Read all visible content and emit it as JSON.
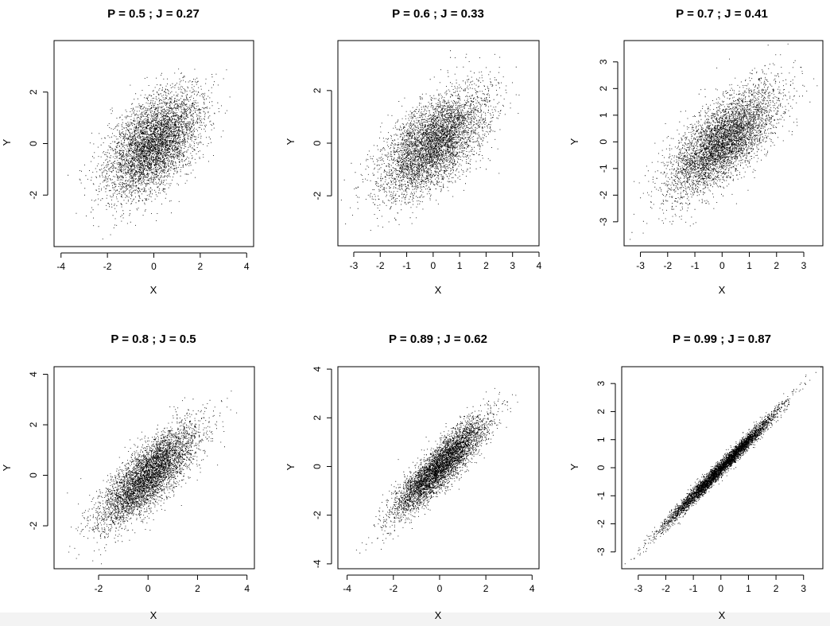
{
  "chart_data": [
    {
      "type": "scatter",
      "title": "P =  0.5 ; J =  0.27",
      "xlabel": "X",
      "ylabel": "Y",
      "correlation": 0.5,
      "n_points": 5000,
      "xlim": [
        -4.3,
        4.3
      ],
      "ylim": [
        -4.0,
        4.0
      ],
      "xticks": [
        -4,
        -2,
        0,
        2,
        4
      ],
      "yticks": [
        -2,
        0,
        2
      ]
    },
    {
      "type": "scatter",
      "title": "P =  0.6 ; J =  0.33",
      "xlabel": "X",
      "ylabel": "Y",
      "correlation": 0.6,
      "n_points": 5000,
      "xlim": [
        -3.6,
        4.0
      ],
      "ylim": [
        -3.9,
        3.9
      ],
      "xticks": [
        -3,
        -2,
        -1,
        0,
        1,
        2,
        3,
        4
      ],
      "yticks": [
        -2,
        0,
        2
      ]
    },
    {
      "type": "scatter",
      "title": "P =  0.7 ; J =  0.41",
      "xlabel": "X",
      "ylabel": "Y",
      "correlation": 0.7,
      "n_points": 5000,
      "xlim": [
        -3.6,
        3.7
      ],
      "ylim": [
        -3.9,
        3.8
      ],
      "xticks": [
        -3,
        -2,
        -1,
        0,
        1,
        2,
        3
      ],
      "yticks": [
        -3,
        -2,
        -1,
        0,
        1,
        2,
        3
      ]
    },
    {
      "type": "scatter",
      "title": "P =  0.8 ; J =  0.5",
      "xlabel": "X",
      "ylabel": "Y",
      "correlation": 0.8,
      "n_points": 5000,
      "xlim": [
        -3.8,
        4.3
      ],
      "ylim": [
        -3.7,
        4.3
      ],
      "xticks": [
        -2,
        0,
        2,
        4
      ],
      "yticks": [
        -2,
        0,
        2,
        4
      ]
    },
    {
      "type": "scatter",
      "title": "P =  0.89 ; J =  0.62",
      "xlabel": "X",
      "ylabel": "Y",
      "correlation": 0.89,
      "n_points": 5000,
      "xlim": [
        -4.4,
        4.3
      ],
      "ylim": [
        -4.2,
        4.1
      ],
      "xticks": [
        -4,
        -2,
        0,
        2,
        4
      ],
      "yticks": [
        -4,
        -2,
        0,
        2,
        4
      ]
    },
    {
      "type": "scatter",
      "title": "P =  0.99 ; J =  0.87",
      "xlabel": "X",
      "ylabel": "Y",
      "correlation": 0.99,
      "n_points": 5000,
      "xlim": [
        -3.6,
        3.7
      ],
      "ylim": [
        -3.6,
        3.6
      ],
      "xticks": [
        -3,
        -2,
        -1,
        0,
        1,
        2,
        3
      ],
      "yticks": [
        -3,
        -2,
        -1,
        0,
        1,
        2,
        3
      ]
    }
  ]
}
